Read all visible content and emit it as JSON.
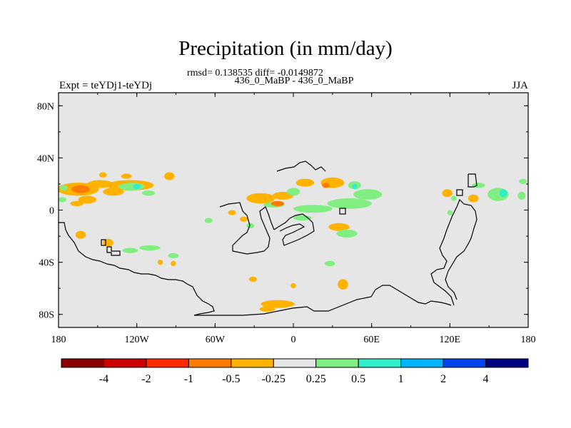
{
  "chart_data": {
    "type": "heatmap",
    "title": "Precipitation (in mm/day)",
    "subtitle": "rmsd= 0.138535 diff= -0.0149872",
    "center_string": "436_0_MaBP - 436_0_MaBP",
    "left_string": "Expt = teYDj1-teYDj",
    "right_string": "JJA",
    "x_axis": {
      "range": [
        -180,
        180
      ],
      "ticks": [
        -180,
        -120,
        -60,
        0,
        60,
        120,
        180
      ],
      "tick_labels": [
        "180",
        "120W",
        "60W",
        "0",
        "60E",
        "120E",
        "180"
      ]
    },
    "y_axis": {
      "range": [
        -90,
        90
      ],
      "ticks": [
        -80,
        -40,
        0,
        40,
        80
      ],
      "tick_labels": [
        "80S",
        "40S",
        "0",
        "40N",
        "80N"
      ]
    },
    "colorbar": {
      "bounds": [
        -4,
        -2,
        -1,
        -0.5,
        -0.25,
        0.25,
        0.5,
        1,
        2,
        4
      ],
      "labels": [
        "-4",
        "-2",
        "-1",
        "-0.5",
        "-0.25",
        "0.25",
        "0.5",
        "1",
        "2",
        "4"
      ],
      "colors": [
        "#8b0000",
        "#cc0000",
        "#ff2a00",
        "#ff7a00",
        "#ffb300",
        "#e6e6e6",
        "#80ee80",
        "#30eec8",
        "#00b4ff",
        "#0044ee",
        "#000080"
      ]
    },
    "anomaly_regions": [
      {
        "lon": -165,
        "lat": 16,
        "rx": 16,
        "ry": 5,
        "value": -0.3
      },
      {
        "lon": -163,
        "lat": 16,
        "rx": 7,
        "ry": 3,
        "value": -0.7
      },
      {
        "lon": -148,
        "lat": 20,
        "rx": 10,
        "ry": 3,
        "value": -0.3
      },
      {
        "lon": -125,
        "lat": 19,
        "rx": 18,
        "ry": 4,
        "value": -0.3
      },
      {
        "lon": -124,
        "lat": 18,
        "rx": 10,
        "ry": 3,
        "value": 0.3
      },
      {
        "lon": -120,
        "lat": 18,
        "rx": 3,
        "ry": 2,
        "value": 0.7
      },
      {
        "lon": -166,
        "lat": 5,
        "rx": 5,
        "ry": 2,
        "value": -0.3
      },
      {
        "lon": -158,
        "lat": 8,
        "rx": 7,
        "ry": 3,
        "value": -0.3
      },
      {
        "lon": -138,
        "lat": 14,
        "rx": 8,
        "ry": 3,
        "value": -0.3
      },
      {
        "lon": -111,
        "lat": 13,
        "rx": 5,
        "ry": 2,
        "value": 0.3
      },
      {
        "lon": -95,
        "lat": 26,
        "rx": 4,
        "ry": 3,
        "value": -0.3
      },
      {
        "lon": -128,
        "lat": 26,
        "rx": 4,
        "ry": 2,
        "value": -0.3
      },
      {
        "lon": -177,
        "lat": 8,
        "rx": 3,
        "ry": 2,
        "value": 0.3
      },
      {
        "lon": -176,
        "lat": 17,
        "rx": 3,
        "ry": 2,
        "value": 0.3
      },
      {
        "lon": -163,
        "lat": -19,
        "rx": 4,
        "ry": 3,
        "value": -0.3
      },
      {
        "lon": -142,
        "lat": -25,
        "rx": 4,
        "ry": 3,
        "value": -0.3
      },
      {
        "lon": -110,
        "lat": -29,
        "rx": 8,
        "ry": 2,
        "value": 0.3
      },
      {
        "lon": -125,
        "lat": -31,
        "rx": 6,
        "ry": 2,
        "value": 0.3
      },
      {
        "lon": -92,
        "lat": -35,
        "rx": 4,
        "ry": 2,
        "value": 0.3
      },
      {
        "lon": -102,
        "lat": -40,
        "rx": 2,
        "ry": 2,
        "value": -0.3
      },
      {
        "lon": -65,
        "lat": -8,
        "rx": 3,
        "ry": 2,
        "value": 0.3
      },
      {
        "lon": -47,
        "lat": -2,
        "rx": 3,
        "ry": 2,
        "value": -0.3
      },
      {
        "lon": -38,
        "lat": -7,
        "rx": 3,
        "ry": 2,
        "value": -0.3
      },
      {
        "lon": -33,
        "lat": -12,
        "rx": 3,
        "ry": 2,
        "value": 0.3
      },
      {
        "lon": -25,
        "lat": 9,
        "rx": 11,
        "ry": 4,
        "value": -0.3
      },
      {
        "lon": -15,
        "lat": 4,
        "rx": 8,
        "ry": 2,
        "value": 0.3
      },
      {
        "lon": -12,
        "lat": 5,
        "rx": 5,
        "ry": 2,
        "value": -0.7
      },
      {
        "lon": -8,
        "lat": 11,
        "rx": 8,
        "ry": 3,
        "value": -0.3
      },
      {
        "lon": 9,
        "lat": 21,
        "rx": 7,
        "ry": 3,
        "value": -0.3
      },
      {
        "lon": 0,
        "lat": 14,
        "rx": 5,
        "ry": 3,
        "value": 0.3
      },
      {
        "lon": 30,
        "lat": 21,
        "rx": 9,
        "ry": 4,
        "value": -0.3
      },
      {
        "lon": 25,
        "lat": 19,
        "rx": 3,
        "ry": 2,
        "value": -0.7
      },
      {
        "lon": 47,
        "lat": 19,
        "rx": 5,
        "ry": 3,
        "value": 0.3
      },
      {
        "lon": 47,
        "lat": 18,
        "rx": 2,
        "ry": 2,
        "value": 0.7
      },
      {
        "lon": 43,
        "lat": 5,
        "rx": 17,
        "ry": 4,
        "value": 0.3
      },
      {
        "lon": 57,
        "lat": 12,
        "rx": 11,
        "ry": 4,
        "value": 0.3
      },
      {
        "lon": 15,
        "lat": 1,
        "rx": 15,
        "ry": 3,
        "value": 0.3
      },
      {
        "lon": 7,
        "lat": -6,
        "rx": 7,
        "ry": 2,
        "value": 0.3
      },
      {
        "lon": 35,
        "lat": -13,
        "rx": 8,
        "ry": 3,
        "value": -0.3
      },
      {
        "lon": 41,
        "lat": -18,
        "rx": 8,
        "ry": 3,
        "value": 0.3
      },
      {
        "lon": 28,
        "lat": -41,
        "rx": 4,
        "ry": 2,
        "value": 0.3
      },
      {
        "lon": -31,
        "lat": -53,
        "rx": 3,
        "ry": 2,
        "value": -0.3
      },
      {
        "lon": 0,
        "lat": -58,
        "rx": 2,
        "ry": 2,
        "value": -0.3
      },
      {
        "lon": 38,
        "lat": -57,
        "rx": 4,
        "ry": 4,
        "value": -0.3
      },
      {
        "lon": -12,
        "lat": -72,
        "rx": 13,
        "ry": 3,
        "value": -0.3
      },
      {
        "lon": -20,
        "lat": -76,
        "rx": 6,
        "ry": 2,
        "value": -0.3
      },
      {
        "lon": -92,
        "lat": -41,
        "rx": 2,
        "ry": 2,
        "value": -0.3
      },
      {
        "lon": 118,
        "lat": 13,
        "rx": 4,
        "ry": 3,
        "value": -0.3
      },
      {
        "lon": 123,
        "lat": 9,
        "rx": 2,
        "ry": 2,
        "value": 0.3
      },
      {
        "lon": 142,
        "lat": 19,
        "rx": 5,
        "ry": 2,
        "value": 0.3
      },
      {
        "lon": 138,
        "lat": 9,
        "rx": 4,
        "ry": 3,
        "value": -0.3
      },
      {
        "lon": 157,
        "lat": 12,
        "rx": 8,
        "ry": 5,
        "value": 0.3
      },
      {
        "lon": 161,
        "lat": 13,
        "rx": 3,
        "ry": 3,
        "value": 0.7
      },
      {
        "lon": 175,
        "lat": 11,
        "rx": 3,
        "ry": 3,
        "value": 0.3
      },
      {
        "lon": 176,
        "lat": 22,
        "rx": 3,
        "ry": 2,
        "value": 0.3
      },
      {
        "lon": 120,
        "lat": -2,
        "rx": 2,
        "ry": 2,
        "value": 0.3
      },
      {
        "lon": -146,
        "lat": 27,
        "rx": 3,
        "ry": 2,
        "value": -0.3
      }
    ]
  }
}
